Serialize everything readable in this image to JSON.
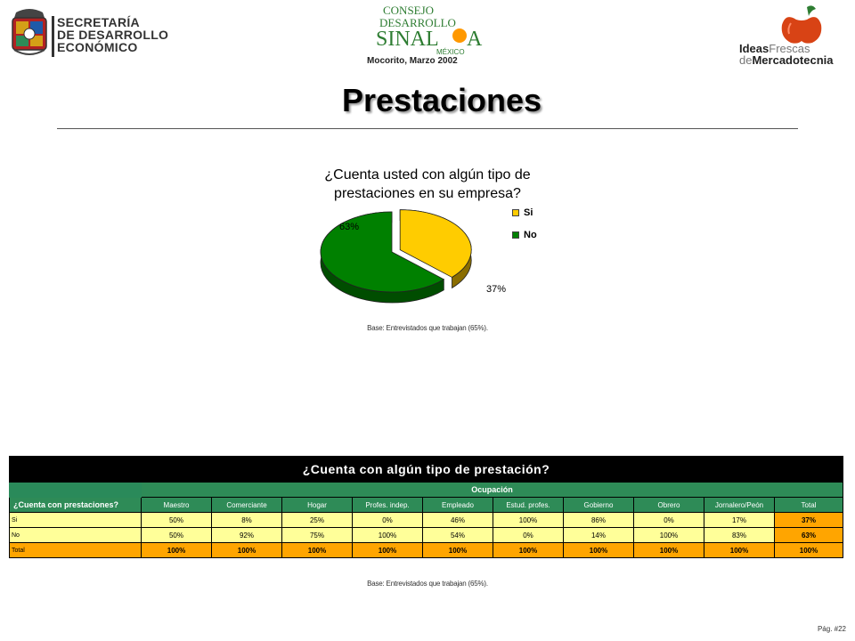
{
  "header": {
    "secretaria": [
      "SECRETARÍA",
      "DE DESARROLLO",
      "ECONÓMICO"
    ],
    "consejo_logo": [
      "CONSEJO",
      "DESARROLLO",
      "SINAL",
      "A",
      "MÉXICO"
    ],
    "date_line": "Mocorito, Marzo 2002",
    "ideas_logo": {
      "ideas": "Ideas",
      "frescas": "Frescas",
      "de": "de",
      "mercadotecnia": "Mercadotecnia"
    }
  },
  "page_title": "Prestaciones",
  "chart_data": {
    "type": "pie",
    "title": "¿Cuenta usted con algún tipo de prestaciones en su empresa?",
    "title_lines": [
      "¿Cuenta usted con algún tipo de",
      "prestaciones en su empresa?"
    ],
    "categories": [
      "Si",
      "No"
    ],
    "values": [
      37,
      63
    ],
    "labels": [
      "37%",
      "63%"
    ],
    "colors": [
      "#ffcc00",
      "#008000"
    ],
    "legend_position": "right",
    "exploded": "Si"
  },
  "chart_base_note": "Base:   Entrevistados que trabajan (65%).",
  "table": {
    "title": "¿Cuenta con algún tipo de prestación?",
    "group_header": "Ocupación",
    "row_header": "¿Cuenta con prestaciones?",
    "columns": [
      "Maestro",
      "Comerciante",
      "Hogar",
      "Profes. indep.",
      "Empleado",
      "Estud. profes.",
      "Gobierno",
      "Obrero",
      "Jornalero/Peón",
      "Total"
    ],
    "rows": [
      {
        "label": "Si",
        "values": [
          "50%",
          "8%",
          "25%",
          "0%",
          "46%",
          "100%",
          "86%",
          "0%",
          "17%",
          "37%"
        ]
      },
      {
        "label": "No",
        "values": [
          "50%",
          "92%",
          "75%",
          "100%",
          "54%",
          "0%",
          "14%",
          "100%",
          "83%",
          "63%"
        ]
      },
      {
        "label": "Total",
        "values": [
          "100%",
          "100%",
          "100%",
          "100%",
          "100%",
          "100%",
          "100%",
          "100%",
          "100%",
          "100%"
        ]
      }
    ]
  },
  "table_base_note": "Base:   Entrevistados que trabajan (65%).",
  "page_number": "Pág. #22",
  "colors": {
    "green": "#2e8b57",
    "yellow_row": "#ffff99",
    "orange_total": "#ffa500"
  }
}
